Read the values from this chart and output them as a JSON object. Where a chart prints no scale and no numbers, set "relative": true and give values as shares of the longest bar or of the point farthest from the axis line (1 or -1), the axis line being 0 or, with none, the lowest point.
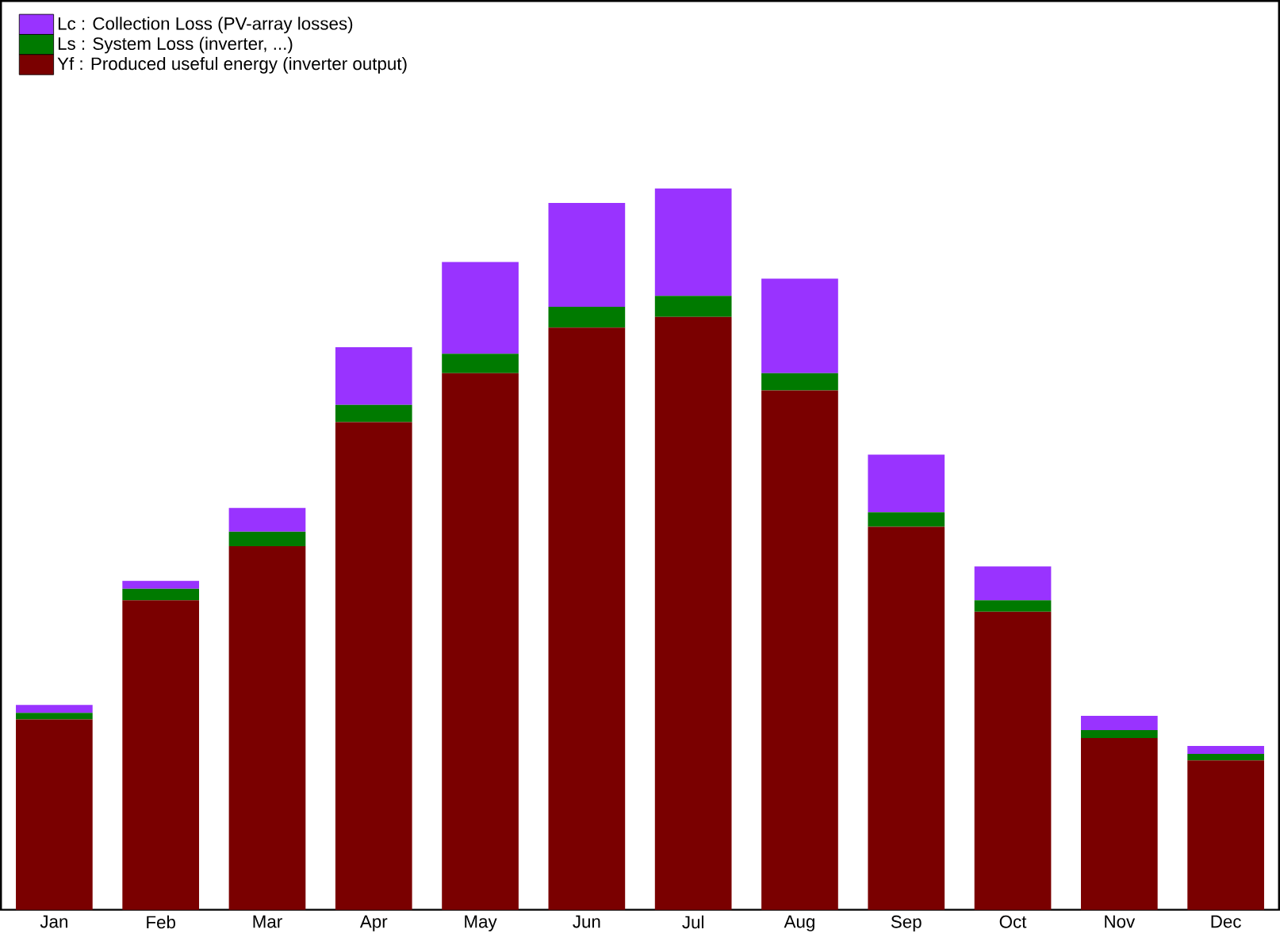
{
  "chart_data": {
    "type": "bar",
    "stacked": true,
    "relative": true,
    "legend": "top left",
    "categories": [
      "Jan",
      "Feb",
      "Mar",
      "Apr",
      "May",
      "Jun",
      "Jul",
      "Aug",
      "Sep",
      "Oct",
      "Nov",
      "Dec"
    ],
    "series": [
      {
        "name": "Yf : Produced useful energy  (inverter output)",
        "color": "#7a0000",
        "values": [
          0.264,
          0.429,
          0.504,
          0.676,
          0.744,
          0.807,
          0.822,
          0.72,
          0.531,
          0.413,
          0.238,
          0.207
        ]
      },
      {
        "name": "Ls : System Loss  (inverter, ...)",
        "color": "#007a00",
        "values": [
          0.009,
          0.016,
          0.02,
          0.024,
          0.027,
          0.029,
          0.029,
          0.024,
          0.02,
          0.016,
          0.011,
          0.009
        ]
      },
      {
        "name": "Lc : Collection Loss (PV-array losses)",
        "color": "#9933ff",
        "values": [
          0.011,
          0.011,
          0.033,
          0.08,
          0.127,
          0.144,
          0.149,
          0.131,
          0.08,
          0.047,
          0.02,
          0.011
        ]
      }
    ]
  }
}
